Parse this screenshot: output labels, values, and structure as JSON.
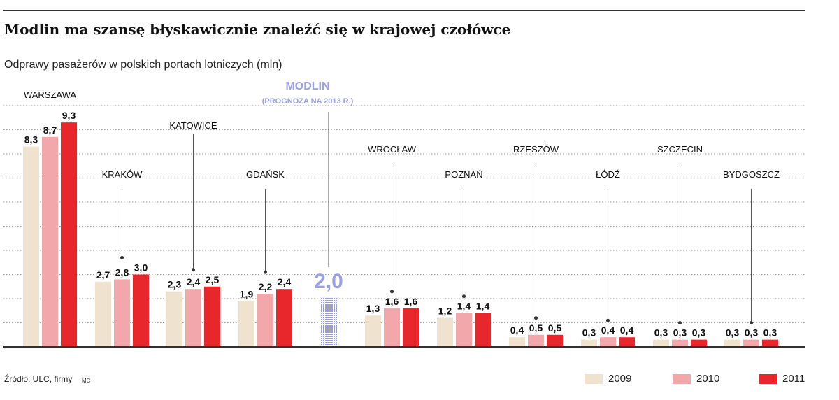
{
  "title": "Modlin ma szansę błyskawicznie znaleźć się w krajowej czołówce",
  "subtitle": "Odprawy pasażerów w polskich portach lotniczych (mln)",
  "source": "Źródło: ULC, firmy",
  "credit": "MC",
  "colors": {
    "2009": "#efe3cf",
    "2010": "#f2a8ab",
    "2011": "#e8272c",
    "modlin": "#9b9ee8",
    "grid": "#9a9a9a",
    "axis": "#333333"
  },
  "legend": [
    {
      "label": "2009",
      "color": "#efe3cf"
    },
    {
      "label": "2010",
      "color": "#f2a8ab"
    },
    {
      "label": "2011",
      "color": "#e8272c"
    }
  ],
  "chart_data": {
    "type": "bar",
    "series_names": [
      "2009",
      "2010",
      "2011"
    ],
    "categories": [
      "WARSZAWA",
      "KRAKÓW",
      "KATOWICE",
      "GDAŃSK",
      "MODLIN",
      "WROCŁAW",
      "POZNAŃ",
      "RZESZÓW",
      "ŁÓDŹ",
      "SZCZECIN",
      "BYDGOSZCZ"
    ],
    "groups": [
      {
        "name": "WARSZAWA",
        "values": [
          8.3,
          8.7,
          9.3
        ],
        "labels": [
          "8,3",
          "8,7",
          "9,3"
        ]
      },
      {
        "name": "KRAKÓW",
        "values": [
          2.7,
          2.8,
          3.0
        ],
        "labels": [
          "2,7",
          "2,8",
          "3,0"
        ]
      },
      {
        "name": "KATOWICE",
        "values": [
          2.3,
          2.4,
          2.5
        ],
        "labels": [
          "2,3",
          "2,4",
          "2,5"
        ]
      },
      {
        "name": "GDAŃSK",
        "values": [
          1.9,
          2.2,
          2.4
        ],
        "labels": [
          "1,9",
          "2,2",
          "2,4"
        ]
      },
      {
        "name": "MODLIN",
        "subtitle": "(PROGNOZA NA 2013 R.)",
        "forecast": true,
        "values": [
          2.0
        ],
        "labels": [
          "2,0"
        ]
      },
      {
        "name": "WROCŁAW",
        "values": [
          1.3,
          1.6,
          1.6
        ],
        "labels": [
          "1,3",
          "1,6",
          "1,6"
        ]
      },
      {
        "name": "POZNAŃ",
        "values": [
          1.2,
          1.4,
          1.4
        ],
        "labels": [
          "1,2",
          "1,4",
          "1,4"
        ]
      },
      {
        "name": "RZESZÓW",
        "values": [
          0.4,
          0.5,
          0.5
        ],
        "labels": [
          "0,4",
          "0,5",
          "0,5"
        ]
      },
      {
        "name": "ŁÓDŹ",
        "values": [
          0.3,
          0.4,
          0.4
        ],
        "labels": [
          "0,3",
          "0,4",
          "0,4"
        ]
      },
      {
        "name": "SZCZECIN",
        "values": [
          0.3,
          0.3,
          0.3
        ],
        "labels": [
          "0,3",
          "0,3",
          "0,3"
        ]
      },
      {
        "name": "BYDGOSZCZ",
        "values": [
          0.3,
          0.3,
          0.3
        ],
        "labels": [
          "0,3",
          "0,3",
          "0,3"
        ]
      }
    ],
    "ylim": [
      0,
      10
    ],
    "grid": "dotted horizontal",
    "legend_position": "bottom-right"
  }
}
